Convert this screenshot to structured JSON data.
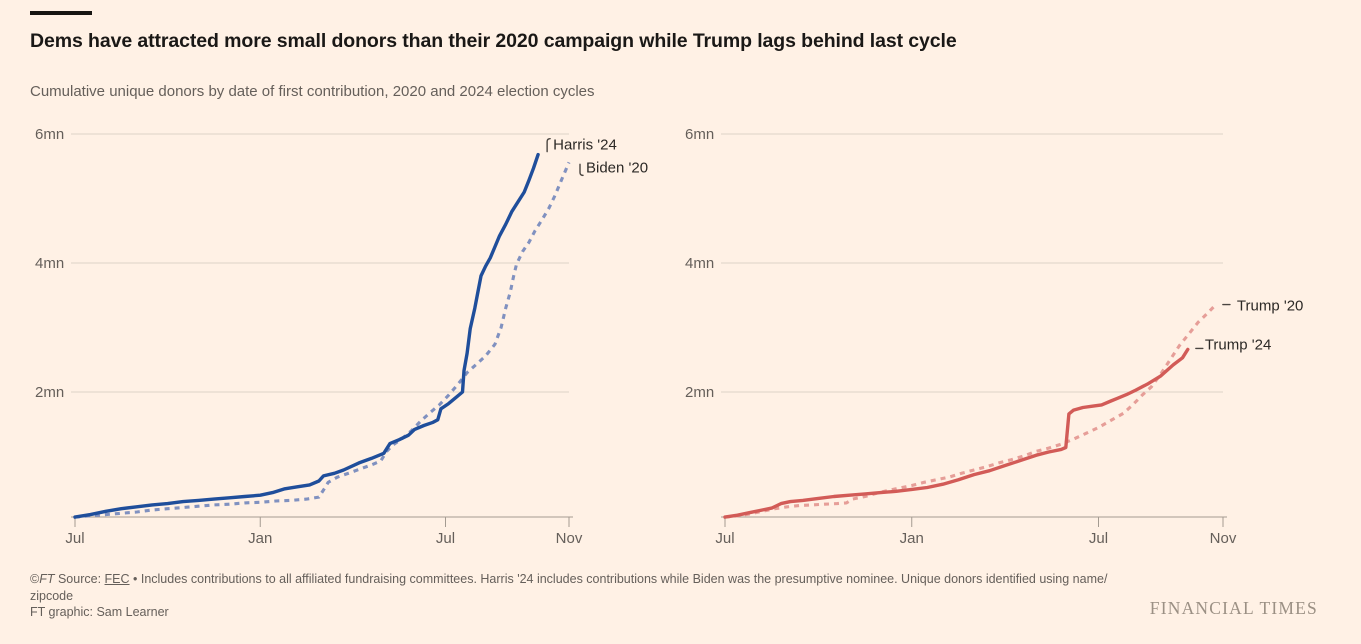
{
  "header": {
    "title": "Dems have attracted more small donors than their 2020 campaign while Trump lags behind last cycle",
    "subtitle": "Cumulative unique donors by date of first contribution, 2020 and 2024 election cycles"
  },
  "colors": {
    "background": "#fff1e5",
    "title_text": "#1a1816",
    "subtitle_text": "#655f5a",
    "gridline": "#ddd2c6",
    "axis_line": "#a49b91",
    "tick_label": "#655f5a",
    "annotation_text": "#2c2926",
    "leader_mark": "#4a4540",
    "harris_blue": "#1f4e9b",
    "biden_slate": "#8091c0",
    "trump24_red": "#d25b57",
    "trump20_pink": "#e69e98",
    "footer_text": "#655f5a",
    "logo_text": "#9b9084"
  },
  "chart_data": [
    {
      "type": "line",
      "panel": "democrats",
      "xlim": [
        0,
        16
      ],
      "ylim": [
        0,
        6.2
      ],
      "grid": "horizontal-only",
      "legend_position": "end-of-line-labels",
      "x_ticks": [
        {
          "m": 0,
          "label": "Jul"
        },
        {
          "m": 6,
          "label": "Jan"
        },
        {
          "m": 12,
          "label": "Jul"
        },
        {
          "m": 16,
          "label": "Nov"
        }
      ],
      "y_ticks": [
        {
          "v": 2,
          "label": "2mn"
        },
        {
          "v": 4,
          "label": "4mn"
        },
        {
          "v": 6,
          "label": "6mn"
        }
      ],
      "series": [
        {
          "name": "Harris '24",
          "style": "solid",
          "color_key": "harris_blue",
          "leader": "hook-top",
          "label_offset": [
            15,
            -5
          ],
          "points": [
            [
              0,
              0.06
            ],
            [
              0.5,
              0.1
            ],
            [
              1,
              0.15
            ],
            [
              1.5,
              0.19
            ],
            [
              2,
              0.22
            ],
            [
              2.5,
              0.25
            ],
            [
              3,
              0.27
            ],
            [
              3.5,
              0.3
            ],
            [
              4,
              0.32
            ],
            [
              4.5,
              0.34
            ],
            [
              5,
              0.36
            ],
            [
              5.5,
              0.38
            ],
            [
              6,
              0.4
            ],
            [
              6.4,
              0.44
            ],
            [
              6.8,
              0.5
            ],
            [
              7.2,
              0.53
            ],
            [
              7.6,
              0.56
            ],
            [
              7.9,
              0.62
            ],
            [
              8.05,
              0.7
            ],
            [
              8.4,
              0.74
            ],
            [
              8.7,
              0.79
            ],
            [
              9.2,
              0.9
            ],
            [
              9.6,
              0.97
            ],
            [
              10,
              1.05
            ],
            [
              10.2,
              1.2
            ],
            [
              10.5,
              1.26
            ],
            [
              10.8,
              1.33
            ],
            [
              11,
              1.42
            ],
            [
              11.3,
              1.48
            ],
            [
              11.6,
              1.53
            ],
            [
              11.75,
              1.57
            ],
            [
              11.85,
              1.74
            ],
            [
              12.1,
              1.82
            ],
            [
              12.35,
              1.92
            ],
            [
              12.55,
              2.0
            ],
            [
              12.6,
              2.33
            ],
            [
              12.7,
              2.6
            ],
            [
              12.8,
              2.98
            ],
            [
              12.95,
              3.3
            ],
            [
              13.05,
              3.55
            ],
            [
              13.15,
              3.8
            ],
            [
              13.3,
              3.95
            ],
            [
              13.45,
              4.08
            ],
            [
              13.6,
              4.25
            ],
            [
              13.75,
              4.42
            ],
            [
              13.95,
              4.6
            ],
            [
              14.15,
              4.8
            ],
            [
              14.35,
              4.95
            ],
            [
              14.55,
              5.1
            ],
            [
              14.7,
              5.28
            ],
            [
              14.85,
              5.47
            ],
            [
              15,
              5.68
            ]
          ]
        },
        {
          "name": "Biden '20",
          "style": "dashed",
          "color_key": "biden_slate",
          "leader": "hook-bottom",
          "label_offset": [
            17,
            10
          ],
          "points": [
            [
              0,
              0.06
            ],
            [
              0.5,
              0.08
            ],
            [
              1,
              0.1
            ],
            [
              1.5,
              0.12
            ],
            [
              2,
              0.14
            ],
            [
              2.5,
              0.17
            ],
            [
              3,
              0.19
            ],
            [
              3.5,
              0.21
            ],
            [
              4,
              0.23
            ],
            [
              4.5,
              0.25
            ],
            [
              5,
              0.26
            ],
            [
              5.5,
              0.28
            ],
            [
              6,
              0.29
            ],
            [
              6.5,
              0.31
            ],
            [
              7,
              0.32
            ],
            [
              7.5,
              0.34
            ],
            [
              7.9,
              0.37
            ],
            [
              8.05,
              0.48
            ],
            [
              8.2,
              0.6
            ],
            [
              8.5,
              0.68
            ],
            [
              8.8,
              0.73
            ],
            [
              9.2,
              0.8
            ],
            [
              9.6,
              0.87
            ],
            [
              9.9,
              0.93
            ],
            [
              10.1,
              1.08
            ],
            [
              10.3,
              1.18
            ],
            [
              10.6,
              1.28
            ],
            [
              10.9,
              1.4
            ],
            [
              11.2,
              1.55
            ],
            [
              11.5,
              1.68
            ],
            [
              11.8,
              1.8
            ],
            [
              12.1,
              1.95
            ],
            [
              12.4,
              2.12
            ],
            [
              12.7,
              2.3
            ],
            [
              13,
              2.43
            ],
            [
              13.3,
              2.56
            ],
            [
              13.6,
              2.74
            ],
            [
              13.8,
              3.0
            ],
            [
              13.95,
              3.3
            ],
            [
              14.1,
              3.55
            ],
            [
              14.2,
              3.78
            ],
            [
              14.3,
              3.98
            ],
            [
              14.5,
              4.18
            ],
            [
              14.7,
              4.32
            ],
            [
              14.9,
              4.5
            ],
            [
              15.1,
              4.65
            ],
            [
              15.35,
              4.85
            ],
            [
              15.55,
              5.05
            ],
            [
              15.75,
              5.28
            ],
            [
              16,
              5.56
            ]
          ]
        }
      ]
    },
    {
      "type": "line",
      "panel": "trump",
      "xlim": [
        0,
        16
      ],
      "ylim": [
        0,
        6.2
      ],
      "grid": "horizontal-only",
      "legend_position": "end-of-line-labels",
      "x_ticks": [
        {
          "m": 0,
          "label": "Jul"
        },
        {
          "m": 6,
          "label": "Jan"
        },
        {
          "m": 12,
          "label": "Jul"
        },
        {
          "m": 16,
          "label": "Nov"
        }
      ],
      "y_ticks": [
        {
          "v": 2,
          "label": "2mn"
        },
        {
          "v": 4,
          "label": "4mn"
        },
        {
          "v": 6,
          "label": "6mn"
        }
      ],
      "series": [
        {
          "name": "Trump '20",
          "style": "dashed",
          "color_key": "trump20_pink",
          "leader": "dash",
          "label_offset": [
            22,
            5
          ],
          "points": [
            [
              0,
              0.06
            ],
            [
              0.4,
              0.08
            ],
            [
              0.8,
              0.11
            ],
            [
              1.2,
              0.15
            ],
            [
              1.6,
              0.19
            ],
            [
              2,
              0.22
            ],
            [
              2.4,
              0.24
            ],
            [
              2.8,
              0.25
            ],
            [
              3.2,
              0.26
            ],
            [
              3.6,
              0.27
            ],
            [
              3.9,
              0.28
            ],
            [
              4.1,
              0.34
            ],
            [
              4.5,
              0.38
            ],
            [
              4.8,
              0.42
            ],
            [
              5.2,
              0.47
            ],
            [
              5.6,
              0.51
            ],
            [
              6,
              0.55
            ],
            [
              6.4,
              0.6
            ],
            [
              6.8,
              0.64
            ],
            [
              7.2,
              0.68
            ],
            [
              7.6,
              0.74
            ],
            [
              8,
              0.79
            ],
            [
              8.4,
              0.84
            ],
            [
              8.8,
              0.9
            ],
            [
              9.2,
              0.95
            ],
            [
              9.6,
              1.01
            ],
            [
              10,
              1.08
            ],
            [
              10.4,
              1.13
            ],
            [
              10.8,
              1.19
            ],
            [
              11.2,
              1.27
            ],
            [
              11.6,
              1.36
            ],
            [
              12,
              1.45
            ],
            [
              12.4,
              1.56
            ],
            [
              12.8,
              1.67
            ],
            [
              13.1,
              1.8
            ],
            [
              13.4,
              1.95
            ],
            [
              13.7,
              2.08
            ],
            [
              14,
              2.28
            ],
            [
              14.3,
              2.5
            ],
            [
              14.6,
              2.72
            ],
            [
              14.9,
              2.9
            ],
            [
              15.2,
              3.08
            ],
            [
              15.5,
              3.22
            ],
            [
              15.74,
              3.34
            ]
          ]
        },
        {
          "name": "Trump '24",
          "style": "solid",
          "color_key": "trump24_red",
          "leader": "dash",
          "label_offset": [
            17,
            0
          ],
          "points": [
            [
              0,
              0.06
            ],
            [
              0.4,
              0.09
            ],
            [
              0.8,
              0.13
            ],
            [
              1.2,
              0.17
            ],
            [
              1.5,
              0.2
            ],
            [
              1.8,
              0.27
            ],
            [
              2.1,
              0.3
            ],
            [
              2.5,
              0.32
            ],
            [
              3,
              0.35
            ],
            [
              3.5,
              0.38
            ],
            [
              4,
              0.4
            ],
            [
              4.5,
              0.42
            ],
            [
              5,
              0.44
            ],
            [
              5.5,
              0.46
            ],
            [
              6,
              0.49
            ],
            [
              6.5,
              0.52
            ],
            [
              7,
              0.57
            ],
            [
              7.5,
              0.64
            ],
            [
              8,
              0.72
            ],
            [
              8.5,
              0.78
            ],
            [
              9,
              0.86
            ],
            [
              9.5,
              0.94
            ],
            [
              10,
              1.02
            ],
            [
              10.4,
              1.07
            ],
            [
              10.8,
              1.11
            ],
            [
              10.95,
              1.14
            ],
            [
              11.05,
              1.66
            ],
            [
              11.2,
              1.72
            ],
            [
              11.5,
              1.76
            ],
            [
              11.8,
              1.78
            ],
            [
              12.1,
              1.8
            ],
            [
              12.4,
              1.86
            ],
            [
              12.6,
              1.9
            ],
            [
              12.9,
              1.96
            ],
            [
              13.2,
              2.03
            ],
            [
              13.6,
              2.13
            ],
            [
              14,
              2.25
            ],
            [
              14.4,
              2.42
            ],
            [
              14.7,
              2.53
            ],
            [
              14.87,
              2.66
            ]
          ]
        }
      ]
    }
  ],
  "footer": {
    "copyright": "©",
    "ft": "FT",
    "source_label": " Source: ",
    "source_link": "FEC",
    "note": " • Includes contributions to all affiliated fundraising committees. Harris '24 includes contributions while Biden was the presumptive nominee. Unique donors identified using name/",
    "wrap": "zipcode",
    "credit": "FT graphic: Sam Learner"
  },
  "branding": {
    "logo": "FINANCIAL TIMES"
  }
}
